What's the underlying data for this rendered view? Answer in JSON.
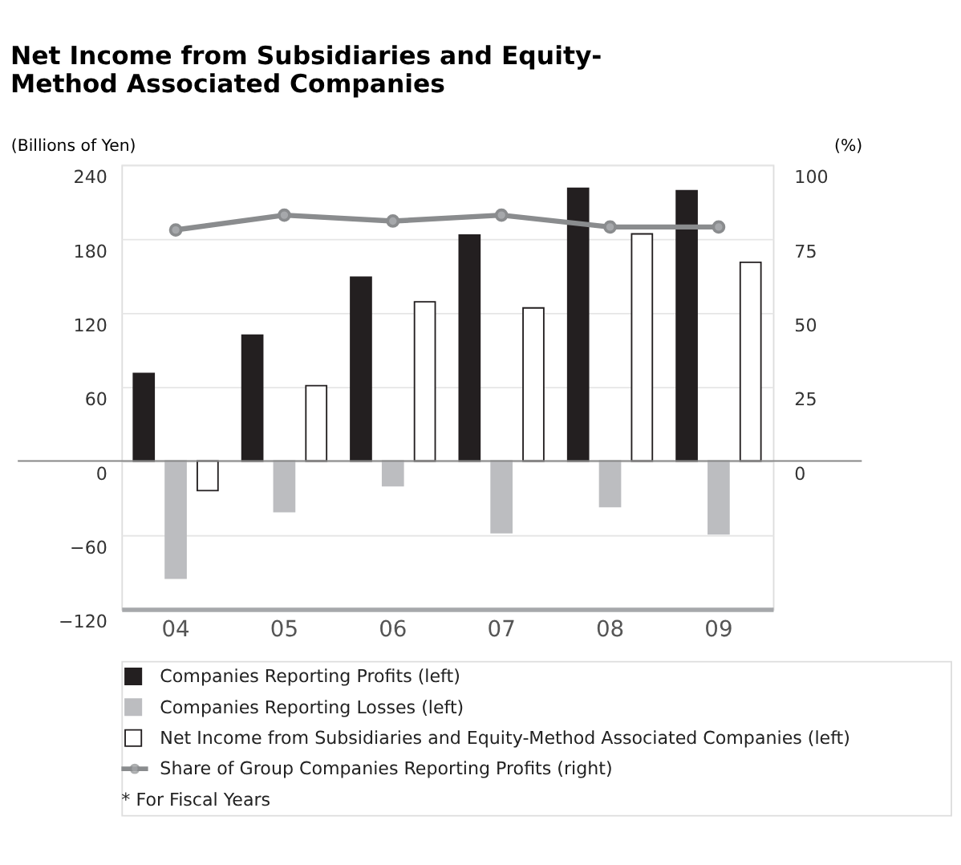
{
  "chart_data": {
    "type": "bar",
    "title": "Net Income from Subsidiaries and Equity-Method Associated Companies",
    "ylabel": "(Billions of Yen)",
    "y2label": "(%)",
    "categories": [
      "04",
      "05",
      "06",
      "07",
      "08",
      "09"
    ],
    "series": [
      {
        "name": "Companies Reporting Profits (left)",
        "color": "#231f20",
        "values": [
          71,
          102,
          149,
          183,
          221,
          219
        ]
      },
      {
        "name": "Companies Reporting Losses (left)",
        "color": "#bcbdc0",
        "values": [
          -95,
          -41,
          -20,
          -58,
          -37,
          -59
        ]
      },
      {
        "name": "Net Income from Subsidiaries and Equity-Method Associated Companies (left)",
        "color": "#ffffff",
        "values": [
          -24,
          61,
          129,
          124,
          184,
          161
        ]
      },
      {
        "name": "Share of Group Companies Reporting Profits (right)",
        "color": "#8a8c8e",
        "type": "line",
        "axis": "y2",
        "marker": "circle",
        "values": [
          78,
          83,
          81,
          83,
          79,
          79
        ]
      }
    ],
    "ylim": [
      -120,
      240
    ],
    "yticks": [
      -120,
      -60,
      0,
      60,
      120,
      180,
      240
    ],
    "y2lim": [
      -50,
      100
    ],
    "y2ticks": [
      0,
      25,
      50,
      75,
      100
    ],
    "grid": "y",
    "legend": "bottom",
    "annotations": [
      "* For Fiscal Years"
    ]
  }
}
